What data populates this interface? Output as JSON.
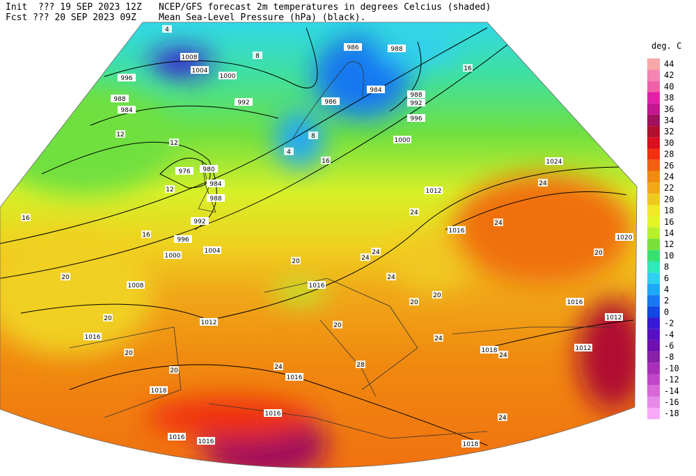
{
  "header": {
    "init": "Init  ??? 19 SEP 2023 12Z",
    "fcst": "Fcst ??? 20 SEP 2023 09Z",
    "title": "NCEP/GFS forecast 2m temperatures in degrees Celcius (shaded)",
    "subtitle": "Mean Sea-Level Pressure (hPa) (black)."
  },
  "legend": {
    "title": "deg. C",
    "levels": [
      44,
      42,
      40,
      38,
      36,
      34,
      32,
      30,
      28,
      26,
      24,
      22,
      20,
      18,
      16,
      14,
      12,
      10,
      8,
      6,
      4,
      2,
      0,
      -2,
      -4,
      -6,
      -8,
      -10,
      -12,
      -14,
      -16,
      -18
    ],
    "colors": [
      "#f6a8a8",
      "#f484b0",
      "#f060a8",
      "#e020a8",
      "#c01890",
      "#a0105c",
      "#b01030",
      "#d81020",
      "#f03010",
      "#f06010",
      "#f08a10",
      "#f0a818",
      "#f0c820",
      "#f0e828",
      "#e0f428",
      "#b8f030",
      "#78e038",
      "#38e070",
      "#30e8b8",
      "#30d0f0",
      "#20a8f8",
      "#1878f0",
      "#1048e0",
      "#3818d0",
      "#5810c0",
      "#7010b0",
      "#8820a8",
      "#a830b8",
      "#c048c8",
      "#d868d8",
      "#e888e8",
      "#f8a8f8"
    ]
  },
  "isobar_labels": [
    1008,
    1004,
    1000,
    996,
    992,
    988,
    984,
    976,
    980,
    984,
    988,
    992,
    996,
    1000,
    1004,
    1008,
    1012,
    1016,
    1016,
    1018,
    1016,
    1016,
    1016,
    1016,
    1018,
    1018,
    1012,
    1012,
    1016,
    1020,
    1024,
    1016,
    1012,
    1000,
    996,
    992,
    988,
    984,
    986,
    988,
    986
  ],
  "temperature_labels": [
    4,
    8,
    16,
    8,
    4,
    16,
    12,
    12,
    12,
    16,
    16,
    20,
    20,
    20,
    20,
    20,
    24,
    24,
    24,
    24,
    20,
    20,
    20,
    24,
    24,
    28,
    24,
    24,
    20,
    24,
    24
  ]
}
